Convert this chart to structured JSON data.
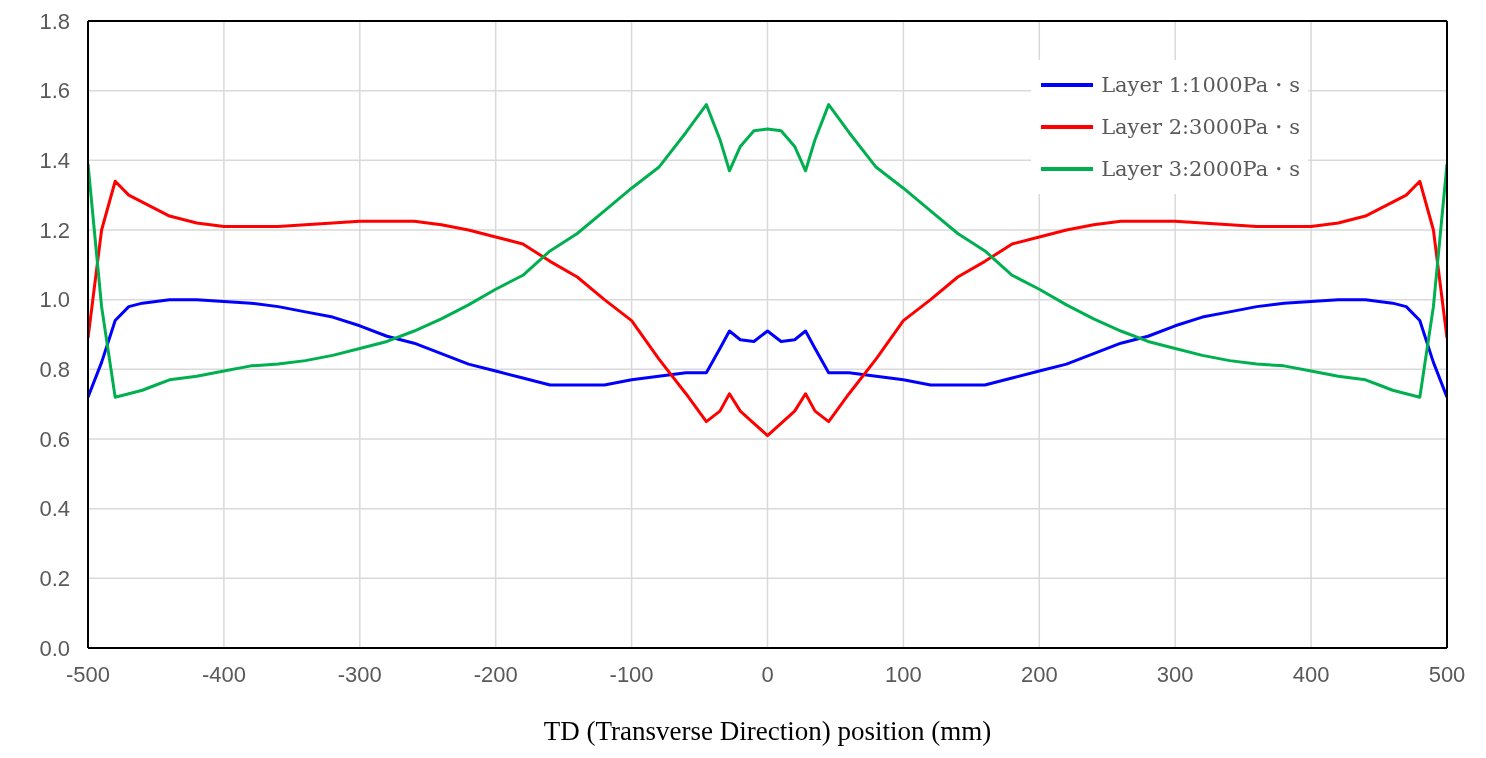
{
  "chart_data": {
    "type": "line",
    "xlabel": "TD (Transverse Direction) position (mm)",
    "x": [
      -500,
      -490,
      -480,
      -470,
      -460,
      -450,
      -440,
      -420,
      -400,
      -380,
      -360,
      -340,
      -320,
      -300,
      -280,
      -260,
      -240,
      -220,
      -200,
      -180,
      -160,
      -140,
      -120,
      -100,
      -80,
      -60,
      -45,
      -35,
      -28,
      -20,
      -10,
      0,
      10,
      20,
      28,
      35,
      45,
      60,
      80,
      100,
      120,
      140,
      160,
      180,
      200,
      220,
      240,
      260,
      280,
      300,
      320,
      340,
      360,
      380,
      400,
      420,
      440,
      450,
      460,
      470,
      480,
      490,
      500
    ],
    "series": [
      {
        "name": "Layer 1:1000Pa・s",
        "color": "#0000ff",
        "values": [
          0.72,
          0.82,
          0.94,
          0.98,
          0.99,
          0.995,
          1.0,
          1.0,
          0.995,
          0.99,
          0.98,
          0.965,
          0.95,
          0.925,
          0.895,
          0.875,
          0.845,
          0.815,
          0.795,
          0.775,
          0.755,
          0.755,
          0.755,
          0.77,
          0.78,
          0.79,
          0.79,
          0.86,
          0.91,
          0.885,
          0.88,
          0.91,
          0.88,
          0.885,
          0.91,
          0.86,
          0.79,
          0.79,
          0.78,
          0.77,
          0.755,
          0.755,
          0.755,
          0.775,
          0.795,
          0.815,
          0.845,
          0.875,
          0.895,
          0.925,
          0.95,
          0.965,
          0.98,
          0.99,
          0.995,
          1.0,
          1.0,
          0.995,
          0.99,
          0.98,
          0.94,
          0.82,
          0.72
        ]
      },
      {
        "name": "Layer 2:3000Pa・s",
        "color": "#ff0000",
        "values": [
          0.89,
          1.2,
          1.34,
          1.3,
          1.28,
          1.26,
          1.24,
          1.22,
          1.21,
          1.21,
          1.21,
          1.215,
          1.22,
          1.225,
          1.225,
          1.225,
          1.215,
          1.2,
          1.18,
          1.16,
          1.11,
          1.065,
          1.0,
          0.94,
          0.83,
          0.73,
          0.65,
          0.68,
          0.73,
          0.68,
          0.645,
          0.61,
          0.645,
          0.68,
          0.73,
          0.68,
          0.65,
          0.73,
          0.83,
          0.94,
          1.0,
          1.065,
          1.11,
          1.16,
          1.18,
          1.2,
          1.215,
          1.225,
          1.225,
          1.225,
          1.22,
          1.215,
          1.21,
          1.21,
          1.21,
          1.22,
          1.24,
          1.26,
          1.28,
          1.3,
          1.34,
          1.2,
          0.89
        ]
      },
      {
        "name": "Layer 3:2000Pa・s",
        "color": "#00b050",
        "values": [
          1.39,
          0.98,
          0.72,
          0.73,
          0.74,
          0.755,
          0.77,
          0.78,
          0.795,
          0.81,
          0.815,
          0.825,
          0.84,
          0.86,
          0.88,
          0.91,
          0.945,
          0.985,
          1.03,
          1.07,
          1.14,
          1.19,
          1.255,
          1.32,
          1.38,
          1.48,
          1.56,
          1.46,
          1.37,
          1.44,
          1.485,
          1.49,
          1.485,
          1.44,
          1.37,
          1.46,
          1.56,
          1.48,
          1.38,
          1.32,
          1.255,
          1.19,
          1.14,
          1.07,
          1.03,
          0.985,
          0.945,
          0.91,
          0.88,
          0.86,
          0.84,
          0.825,
          0.815,
          0.81,
          0.795,
          0.78,
          0.77,
          0.755,
          0.74,
          0.73,
          0.72,
          0.98,
          1.39
        ]
      }
    ],
    "xlim": [
      -500,
      500
    ],
    "xticks": [
      -500,
      -400,
      -300,
      -200,
      -100,
      0,
      100,
      200,
      300,
      400,
      500
    ],
    "ylim": [
      0,
      1.8
    ],
    "yticks": [
      {
        "value": 0,
        "label": "0.0"
      },
      0.2,
      0.4,
      0.6,
      0.8,
      {
        "value": 1,
        "label": "1.0"
      },
      1.2,
      1.4,
      1.6,
      1.8
    ],
    "grid": true,
    "legend": "top right",
    "marker": "none",
    "line_style": "solid"
  }
}
